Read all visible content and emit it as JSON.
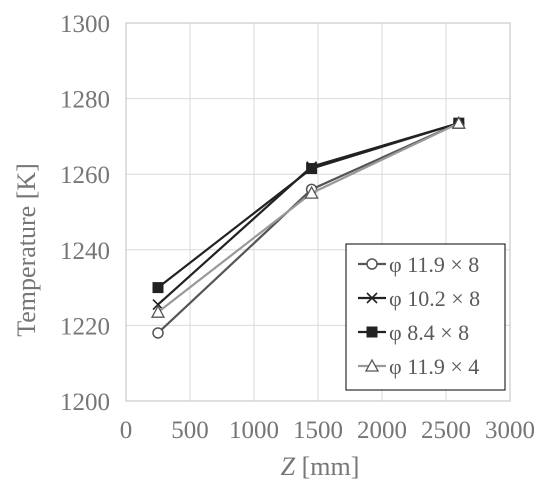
{
  "chart_data": {
    "type": "line",
    "title": "",
    "xlabel_symbol": "Z",
    "xlabel_unit": " [mm]",
    "ylabel": "Temperature [K]",
    "xlim": [
      0,
      3000
    ],
    "ylim": [
      1200,
      1300
    ],
    "xticks": [
      0,
      500,
      1000,
      1500,
      2000,
      2500,
      3000
    ],
    "yticks": [
      1200,
      1220,
      1240,
      1260,
      1280,
      1300
    ],
    "xtick_labels": [
      "0",
      "500",
      "1000",
      "1500",
      "2000",
      "2500",
      "3000"
    ],
    "ytick_labels": [
      "1200",
      "1220",
      "1240",
      "1260",
      "1280",
      "1300"
    ],
    "grid": true,
    "legend_position": "bottom-right",
    "series": [
      {
        "name": "φ 11.9 × 8",
        "marker": "circle",
        "color": "#555555",
        "x": [
          250,
          1450,
          2600
        ],
        "y": [
          1218,
          1256,
          1273.5
        ]
      },
      {
        "name": "φ 10.2 × 8",
        "marker": "x",
        "color": "#222222",
        "x": [
          250,
          1450,
          2600
        ],
        "y": [
          1225.5,
          1262,
          1273.5
        ]
      },
      {
        "name": "φ 8.4 × 8",
        "marker": "square",
        "color": "#222222",
        "x": [
          250,
          1450,
          2600
        ],
        "y": [
          1230,
          1261.5,
          1273.5
        ]
      },
      {
        "name": "φ 11.9 × 4",
        "marker": "triangle",
        "color": "#999999",
        "x": [
          250,
          1450,
          2600
        ],
        "y": [
          1223.5,
          1255,
          1273.5
        ]
      }
    ]
  }
}
